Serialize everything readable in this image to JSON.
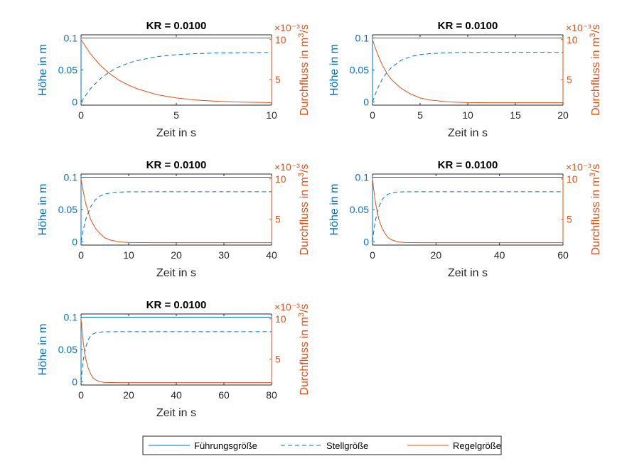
{
  "chart_data": [
    {
      "type": "line",
      "title": "KR = 0.0100",
      "xlabel": "Zeit in s",
      "ylabel_left": "Höhe in m",
      "ylabel_right": "Durchfluss in m^3/s",
      "right_exponent": "×10⁻³",
      "xlim": [
        0,
        10
      ],
      "xticks": [
        0,
        5,
        10
      ],
      "ylim_left": [
        -0.005,
        0.105
      ],
      "yticks_left": [
        0,
        0.05,
        0.1
      ],
      "ytick_labels_left": [
        "0",
        "0.05",
        "0.1"
      ],
      "ylim_right": [
        1.8,
        10.6
      ],
      "yticks_right": [
        5,
        10
      ],
      "series": [
        {
          "name": "Führungsgröße",
          "axis": "left",
          "style": "solid",
          "color": "#0072BD",
          "x": [
            0,
            10
          ],
          "y": [
            0.1,
            0.1
          ]
        },
        {
          "name": "Stellgröße",
          "axis": "left",
          "style": "dashed",
          "color": "#0072BD",
          "x": [
            0,
            0.5,
            1,
            1.5,
            2,
            2.5,
            3,
            4,
            5,
            6,
            7,
            8,
            9,
            10
          ],
          "y": [
            0.0,
            0.021,
            0.036,
            0.047,
            0.055,
            0.061,
            0.065,
            0.071,
            0.074,
            0.0755,
            0.0765,
            0.077,
            0.0772,
            0.0773
          ]
        },
        {
          "name": "Regelgröße",
          "axis": "right",
          "style": "solid",
          "color": "#D95319",
          "x": [
            0,
            0.5,
            1,
            1.5,
            2,
            2.5,
            3,
            4,
            5,
            6,
            7,
            8,
            9,
            10
          ],
          "y": [
            10.0,
            8.2,
            6.8,
            5.75,
            4.9,
            4.3,
            3.8,
            3.1,
            2.7,
            2.45,
            2.3,
            2.2,
            2.15,
            2.12
          ]
        }
      ]
    },
    {
      "type": "line",
      "title": "KR = 0.0100",
      "xlabel": "Zeit in s",
      "ylabel_left": "Höhe in m",
      "ylabel_right": "Durchfluss in m^3/s",
      "right_exponent": "×10⁻³",
      "xlim": [
        0,
        20
      ],
      "xticks": [
        0,
        5,
        10,
        15,
        20
      ],
      "ylim_left": [
        -0.005,
        0.105
      ],
      "yticks_left": [
        0,
        0.05,
        0.1
      ],
      "ytick_labels_left": [
        "0",
        "0.05",
        "0.1"
      ],
      "ylim_right": [
        1.8,
        10.6
      ],
      "yticks_right": [
        5,
        10
      ],
      "series": [
        {
          "name": "Führungsgröße",
          "axis": "left",
          "style": "solid",
          "color": "#0072BD",
          "x": [
            0,
            20
          ],
          "y": [
            0.1,
            0.1
          ]
        },
        {
          "name": "Stellgröße",
          "axis": "left",
          "style": "dashed",
          "color": "#0072BD",
          "x": [
            0,
            0.5,
            1,
            1.5,
            2,
            3,
            4,
            5,
            6,
            8,
            10,
            12,
            15,
            20
          ],
          "y": [
            0.0,
            0.02,
            0.035,
            0.046,
            0.054,
            0.065,
            0.071,
            0.074,
            0.0755,
            0.077,
            0.0775,
            0.0776,
            0.0776,
            0.0776
          ]
        },
        {
          "name": "Regelgröße",
          "axis": "right",
          "style": "solid",
          "color": "#D95319",
          "x": [
            0,
            0.5,
            1,
            1.5,
            2,
            3,
            4,
            5,
            6,
            8,
            10,
            12,
            15,
            20
          ],
          "y": [
            10.0,
            8.3,
            6.9,
            5.8,
            5.0,
            3.9,
            3.2,
            2.7,
            2.45,
            2.2,
            2.12,
            2.1,
            2.1,
            2.1
          ]
        }
      ]
    },
    {
      "type": "line",
      "title": "KR = 0.0100",
      "xlabel": "Zeit in s",
      "ylabel_left": "Höhe in m",
      "ylabel_right": "Durchfluss in m^3/s",
      "right_exponent": "×10⁻³",
      "xlim": [
        0,
        40
      ],
      "xticks": [
        0,
        10,
        20,
        30,
        40
      ],
      "ylim_left": [
        -0.005,
        0.105
      ],
      "yticks_left": [
        0,
        0.05,
        0.1
      ],
      "ytick_labels_left": [
        "0",
        "0.05",
        "0.1"
      ],
      "ylim_right": [
        1.8,
        10.6
      ],
      "yticks_right": [
        5,
        10
      ],
      "series": [
        {
          "name": "Führungsgröße",
          "axis": "left",
          "style": "solid",
          "color": "#0072BD",
          "x": [
            0,
            40
          ],
          "y": [
            0.1,
            0.1
          ]
        },
        {
          "name": "Stellgröße",
          "axis": "left",
          "style": "dashed",
          "color": "#0072BD",
          "x": [
            0,
            0.5,
            1,
            2,
            3,
            4,
            5,
            6,
            8,
            10,
            15,
            20,
            30,
            40
          ],
          "y": [
            0.0,
            0.02,
            0.035,
            0.054,
            0.065,
            0.071,
            0.074,
            0.0755,
            0.077,
            0.0775,
            0.0776,
            0.0776,
            0.0776,
            0.0776
          ]
        },
        {
          "name": "Regelgröße",
          "axis": "right",
          "style": "solid",
          "color": "#D95319",
          "x": [
            0,
            0.5,
            1,
            2,
            3,
            4,
            5,
            6,
            8,
            10,
            15,
            20,
            30,
            40
          ],
          "y": [
            10.0,
            8.3,
            6.9,
            5.0,
            3.9,
            3.2,
            2.7,
            2.45,
            2.2,
            2.12,
            2.1,
            2.1,
            2.1,
            2.1
          ]
        }
      ]
    },
    {
      "type": "line",
      "title": "KR = 0.0100",
      "xlabel": "Zeit in s",
      "ylabel_left": "Höhe in m",
      "ylabel_right": "Durchfluss in m^3/s",
      "right_exponent": "×10⁻³",
      "xlim": [
        0,
        60
      ],
      "xticks": [
        0,
        20,
        40,
        60
      ],
      "ylim_left": [
        -0.005,
        0.105
      ],
      "yticks_left": [
        0,
        0.05,
        0.1
      ],
      "ytick_labels_left": [
        "0",
        "0.05",
        "0.1"
      ],
      "ylim_right": [
        1.8,
        10.6
      ],
      "yticks_right": [
        5,
        10
      ],
      "series": [
        {
          "name": "Führungsgröße",
          "axis": "left",
          "style": "solid",
          "color": "#0072BD",
          "x": [
            0,
            60
          ],
          "y": [
            0.1,
            0.1
          ]
        },
        {
          "name": "Stellgröße",
          "axis": "left",
          "style": "dashed",
          "color": "#0072BD",
          "x": [
            0,
            0.5,
            1,
            2,
            3,
            4,
            5,
            6,
            8,
            10,
            15,
            20,
            40,
            60
          ],
          "y": [
            0.0,
            0.02,
            0.035,
            0.054,
            0.065,
            0.071,
            0.074,
            0.0755,
            0.077,
            0.0775,
            0.0776,
            0.0776,
            0.0776,
            0.0776
          ]
        },
        {
          "name": "Regelgröße",
          "axis": "right",
          "style": "solid",
          "color": "#D95319",
          "x": [
            0,
            0.5,
            1,
            2,
            3,
            4,
            5,
            6,
            8,
            10,
            15,
            20,
            40,
            60
          ],
          "y": [
            10.0,
            8.3,
            6.9,
            5.0,
            3.9,
            3.2,
            2.7,
            2.45,
            2.2,
            2.12,
            2.1,
            2.1,
            2.1,
            2.1
          ]
        }
      ]
    },
    {
      "type": "line",
      "title": "KR = 0.0100",
      "xlabel": "Zeit in s",
      "ylabel_left": "Höhe in m",
      "ylabel_right": "Durchfluss in m^3/s",
      "right_exponent": "×10⁻³",
      "xlim": [
        0,
        80
      ],
      "xticks": [
        0,
        20,
        40,
        60,
        80
      ],
      "ylim_left": [
        -0.005,
        0.105
      ],
      "yticks_left": [
        0,
        0.05,
        0.1
      ],
      "ytick_labels_left": [
        "0",
        "0.05",
        "0.1"
      ],
      "ylim_right": [
        1.8,
        10.6
      ],
      "yticks_right": [
        5,
        10
      ],
      "series": [
        {
          "name": "Führungsgröße",
          "axis": "left",
          "style": "solid",
          "color": "#0072BD",
          "x": [
            0,
            80
          ],
          "y": [
            0.1,
            0.1
          ]
        },
        {
          "name": "Stellgröße",
          "axis": "left",
          "style": "dashed",
          "color": "#0072BD",
          "x": [
            0,
            0.5,
            1,
            2,
            3,
            4,
            5,
            6,
            8,
            10,
            15,
            20,
            40,
            80
          ],
          "y": [
            0.0,
            0.02,
            0.035,
            0.054,
            0.065,
            0.071,
            0.074,
            0.0755,
            0.077,
            0.0775,
            0.0776,
            0.0776,
            0.0776,
            0.0776
          ]
        },
        {
          "name": "Regelgröße",
          "axis": "right",
          "style": "solid",
          "color": "#D95319",
          "x": [
            0,
            0.5,
            1,
            2,
            3,
            4,
            5,
            6,
            8,
            10,
            15,
            20,
            40,
            80
          ],
          "y": [
            10.0,
            8.3,
            6.9,
            5.0,
            3.9,
            3.2,
            2.7,
            2.45,
            2.2,
            2.12,
            2.1,
            2.1,
            2.1,
            2.1
          ]
        }
      ]
    }
  ],
  "legend": {
    "placement": "bottom-center",
    "entries": [
      {
        "label": "Führungsgröße",
        "style": "solid",
        "color": "#0072BD"
      },
      {
        "label": "Stellgröße",
        "style": "dashed",
        "color": "#0072BD"
      },
      {
        "label": "Regelgröße",
        "style": "solid",
        "color": "#D95319"
      }
    ]
  }
}
